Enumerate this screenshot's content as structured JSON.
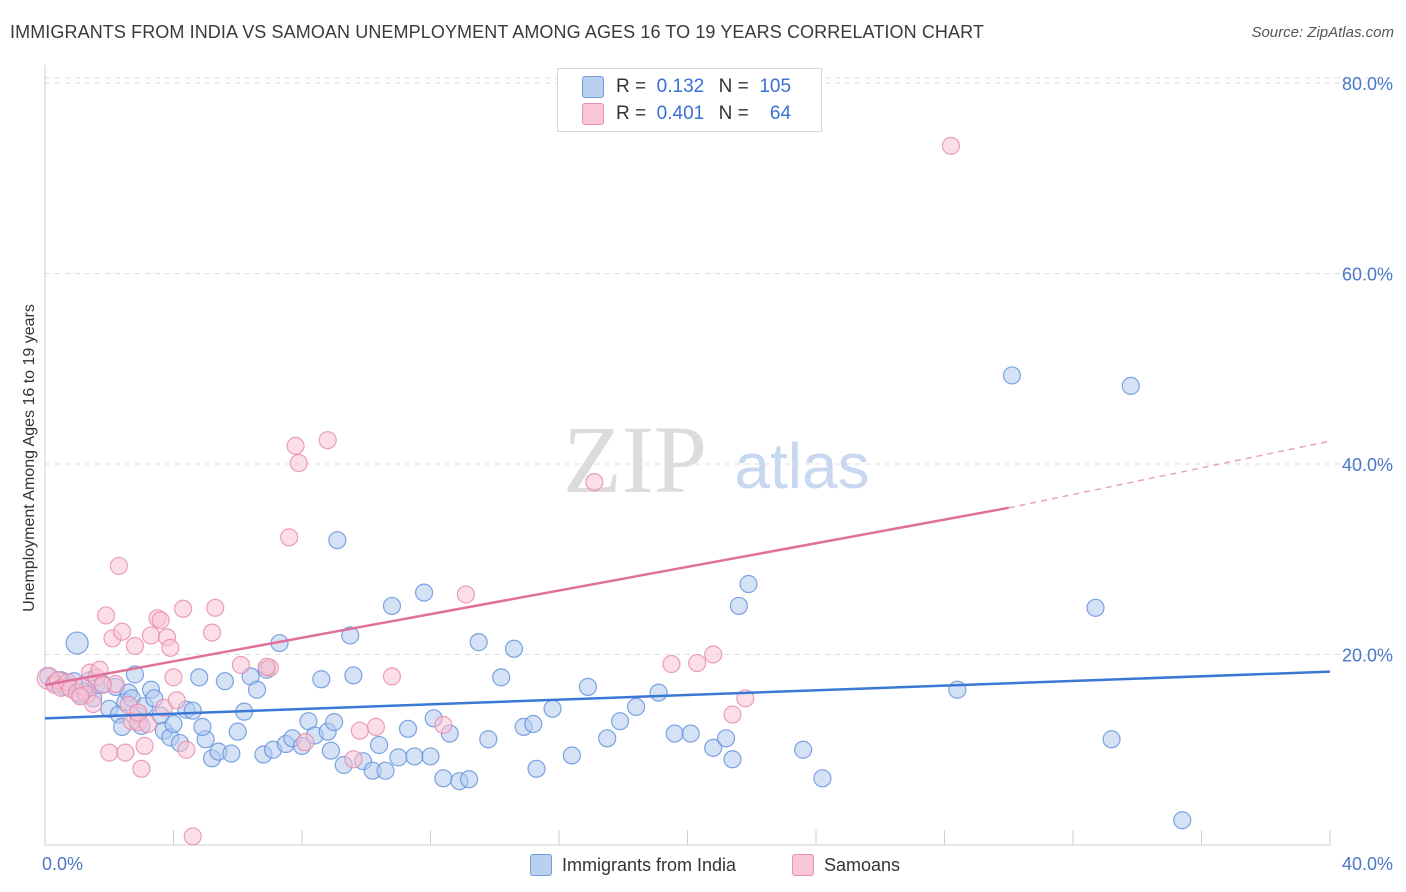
{
  "title": "IMMIGRANTS FROM INDIA VS SAMOAN UNEMPLOYMENT AMONG AGES 16 TO 19 YEARS CORRELATION CHART",
  "source": "Source: ZipAtlas.com",
  "watermark": {
    "zip": "ZIP",
    "atlas": "atlas"
  },
  "colors": {
    "blue": "#3a78d4",
    "blue_fill": "#a9c4ec",
    "pink": "#e0709a",
    "pink_fill": "#f5b9cc",
    "axis_text": "#4a78c8"
  },
  "legend": {
    "r_label": "R =",
    "n_label": "N =",
    "rows": [
      {
        "r": "0.132",
        "n": "105"
      },
      {
        "r": "0.401",
        "n": "64"
      }
    ]
  },
  "chart_data": {
    "type": "scatter",
    "title": "IMMIGRANTS FROM INDIA VS SAMOAN UNEMPLOYMENT AMONG AGES 16 TO 19 YEARS CORRELATION CHART",
    "xlabel": "",
    "ylabel": "Unemployment Among Ages 16 to 19 years",
    "xlim": [
      0,
      40
    ],
    "ylim": [
      0,
      80
    ],
    "x_tick_labels": [
      "0.0%",
      "40.0%"
    ],
    "y_tick_labels": [
      "20.0%",
      "40.0%",
      "60.0%",
      "80.0%"
    ],
    "y_ticks": [
      20,
      40,
      60,
      80
    ],
    "series": [
      {
        "name": "Immigrants from India",
        "color": "#3a78d4",
        "trend": {
          "x0": 0,
          "y0": 13.3,
          "x1": 40,
          "y1": 18.2
        },
        "points": [
          [
            0.1,
            17.7
          ],
          [
            0.3,
            17.0
          ],
          [
            0.5,
            17.3
          ],
          [
            0.7,
            16.7
          ],
          [
            0.9,
            17.2
          ],
          [
            1.0,
            21.2
          ],
          [
            1.1,
            15.8
          ],
          [
            1.4,
            17.3
          ],
          [
            1.5,
            15.4
          ],
          [
            1.6,
            16.8
          ],
          [
            1.8,
            16.9
          ],
          [
            2.0,
            14.3
          ],
          [
            2.2,
            16.6
          ],
          [
            2.3,
            13.7
          ],
          [
            2.5,
            15.0
          ],
          [
            2.6,
            16.0
          ],
          [
            2.7,
            15.4
          ],
          [
            2.8,
            17.9
          ],
          [
            2.9,
            13.6
          ],
          [
            3.0,
            12.5
          ],
          [
            3.1,
            14.6
          ],
          [
            3.3,
            16.3
          ],
          [
            3.6,
            13.6
          ],
          [
            3.7,
            12.0
          ],
          [
            3.9,
            11.3
          ],
          [
            4.0,
            12.7
          ],
          [
            4.2,
            10.7
          ],
          [
            4.4,
            14.2
          ],
          [
            4.6,
            14.1
          ],
          [
            4.8,
            17.6
          ],
          [
            5.0,
            11.1
          ],
          [
            5.2,
            9.1
          ],
          [
            5.4,
            9.8
          ],
          [
            5.6,
            17.2
          ],
          [
            5.8,
            9.6
          ],
          [
            6.0,
            11.9
          ],
          [
            6.2,
            14.0
          ],
          [
            6.4,
            17.7
          ],
          [
            6.6,
            16.3
          ],
          [
            6.8,
            9.5
          ],
          [
            7.1,
            10.0
          ],
          [
            7.3,
            21.2
          ],
          [
            7.5,
            10.6
          ],
          [
            7.7,
            11.2
          ],
          [
            8.0,
            10.4
          ],
          [
            8.2,
            13.0
          ],
          [
            8.4,
            11.5
          ],
          [
            8.6,
            17.4
          ],
          [
            8.8,
            11.9
          ],
          [
            9.0,
            12.9
          ],
          [
            9.1,
            32.0
          ],
          [
            9.3,
            8.4
          ],
          [
            9.5,
            22.0
          ],
          [
            9.6,
            17.8
          ],
          [
            9.9,
            8.8
          ],
          [
            10.2,
            7.8
          ],
          [
            10.4,
            10.5
          ],
          [
            10.6,
            7.8
          ],
          [
            10.8,
            25.1
          ],
          [
            11.0,
            9.2
          ],
          [
            11.3,
            12.2
          ],
          [
            11.5,
            9.3
          ],
          [
            11.8,
            26.5
          ],
          [
            12.1,
            13.3
          ],
          [
            12.4,
            7.0
          ],
          [
            12.6,
            11.7
          ],
          [
            12.9,
            6.7
          ],
          [
            13.2,
            6.9
          ],
          [
            13.5,
            21.3
          ],
          [
            13.8,
            11.1
          ],
          [
            14.2,
            17.6
          ],
          [
            14.6,
            20.6
          ],
          [
            14.9,
            12.4
          ],
          [
            15.3,
            8.0
          ],
          [
            15.8,
            14.3
          ],
          [
            16.4,
            9.4
          ],
          [
            16.9,
            16.6
          ],
          [
            17.5,
            11.2
          ],
          [
            17.9,
            13.0
          ],
          [
            18.4,
            14.5
          ],
          [
            19.1,
            16.0
          ],
          [
            19.6,
            11.7
          ],
          [
            20.1,
            11.7
          ],
          [
            20.8,
            10.2
          ],
          [
            21.2,
            11.2
          ],
          [
            21.6,
            25.1
          ],
          [
            21.9,
            27.4
          ],
          [
            21.4,
            9.0
          ],
          [
            23.6,
            10.0
          ],
          [
            24.2,
            7.0
          ],
          [
            28.4,
            16.3
          ],
          [
            30.1,
            49.3
          ],
          [
            32.7,
            24.9
          ],
          [
            33.8,
            48.2
          ],
          [
            33.2,
            11.1
          ],
          [
            35.4,
            2.6
          ],
          [
            0.6,
            16.6
          ],
          [
            1.2,
            16.1
          ],
          [
            2.4,
            12.4
          ],
          [
            3.4,
            15.4
          ],
          [
            4.9,
            12.4
          ],
          [
            6.9,
            18.4
          ],
          [
            8.9,
            9.9
          ],
          [
            12.0,
            9.3
          ],
          [
            15.2,
            12.7
          ]
        ]
      },
      {
        "name": "Samoans",
        "color": "#e0709a",
        "trend": {
          "x0": 0,
          "y0": 16.8,
          "x1": 30,
          "y1": 35.4,
          "dash_to": {
            "x": 40,
            "y": 42.4
          }
        },
        "points": [
          [
            0.1,
            17.5
          ],
          [
            0.3,
            16.8
          ],
          [
            0.4,
            17.3
          ],
          [
            0.5,
            16.5
          ],
          [
            0.7,
            17.1
          ],
          [
            0.8,
            16.4
          ],
          [
            1.0,
            16.0
          ],
          [
            1.2,
            16.6
          ],
          [
            1.3,
            15.8
          ],
          [
            1.4,
            18.1
          ],
          [
            1.5,
            14.8
          ],
          [
            1.6,
            17.6
          ],
          [
            1.7,
            18.4
          ],
          [
            1.9,
            24.1
          ],
          [
            2.0,
            9.7
          ],
          [
            2.1,
            21.7
          ],
          [
            2.2,
            16.9
          ],
          [
            2.3,
            29.3
          ],
          [
            2.4,
            22.4
          ],
          [
            2.6,
            14.7
          ],
          [
            2.7,
            13.0
          ],
          [
            2.8,
            20.9
          ],
          [
            2.9,
            12.9
          ],
          [
            3.1,
            10.4
          ],
          [
            3.3,
            22.0
          ],
          [
            3.5,
            23.8
          ],
          [
            3.6,
            23.6
          ],
          [
            3.7,
            14.4
          ],
          [
            3.8,
            21.8
          ],
          [
            3.9,
            20.7
          ],
          [
            4.1,
            15.2
          ],
          [
            4.3,
            24.8
          ],
          [
            4.4,
            10.0
          ],
          [
            4.6,
            0.9
          ],
          [
            5.2,
            22.3
          ],
          [
            5.3,
            24.9
          ],
          [
            6.1,
            18.9
          ],
          [
            7.0,
            18.6
          ],
          [
            7.6,
            32.3
          ],
          [
            7.8,
            41.9
          ],
          [
            7.9,
            40.1
          ],
          [
            8.1,
            10.8
          ],
          [
            8.8,
            42.5
          ],
          [
            9.6,
            9.0
          ],
          [
            10.3,
            12.4
          ],
          [
            10.8,
            17.7
          ],
          [
            12.4,
            12.6
          ],
          [
            13.1,
            26.3
          ],
          [
            17.1,
            38.1
          ],
          [
            19.5,
            19.0
          ],
          [
            20.3,
            19.1
          ],
          [
            20.8,
            20.0
          ],
          [
            21.4,
            13.7
          ],
          [
            21.8,
            15.4
          ],
          [
            28.2,
            73.4
          ],
          [
            1.1,
            15.6
          ],
          [
            2.5,
            9.7
          ],
          [
            3.0,
            8.0
          ],
          [
            1.8,
            16.8
          ],
          [
            3.2,
            12.7
          ],
          [
            2.9,
            13.9
          ],
          [
            4.0,
            17.6
          ],
          [
            6.9,
            18.7
          ],
          [
            9.8,
            12.0
          ]
        ]
      }
    ]
  },
  "bottom_legend": [
    {
      "label": "Immigrants from India"
    },
    {
      "label": "Samoans"
    }
  ]
}
